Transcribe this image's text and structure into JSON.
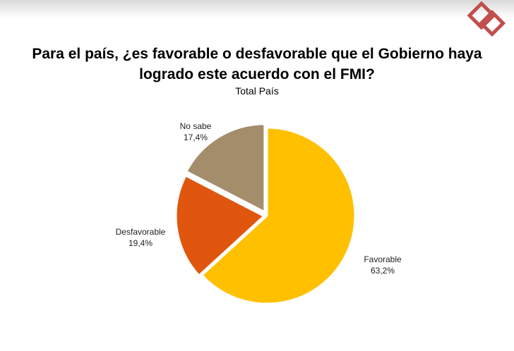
{
  "header": {
    "title_line1": "Para el país, ¿es favorable o desfavorable que el Gobierno haya",
    "title_line2": "logrado este acuerdo con el FMI?",
    "subtitle": "Total País"
  },
  "colors": {
    "favorable": "#ffc000",
    "desfavorable": "#e0560f",
    "no_sabe": "#a48d6b",
    "logo": "#c0504d"
  },
  "chart_data": {
    "type": "pie",
    "title": "Para el país, ¿es favorable o desfavorable que el Gobierno haya logrado este acuerdo con el FMI?",
    "subtitle": "Total País",
    "slices": [
      {
        "label": "Favorable",
        "value": 63.2,
        "value_label": "63,2%",
        "color": "#ffc000"
      },
      {
        "label": "Desfavorable",
        "value": 19.4,
        "value_label": "19,4%",
        "color": "#e0560f"
      },
      {
        "label": "No sabe",
        "value": 17.4,
        "value_label": "17,4%",
        "color": "#a48d6b"
      }
    ]
  }
}
